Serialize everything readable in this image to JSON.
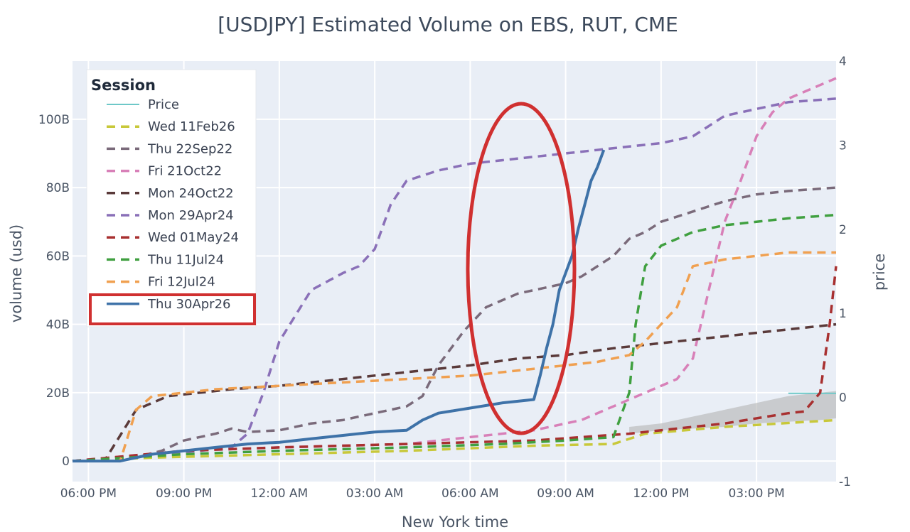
{
  "chart_data": {
    "type": "line",
    "title": "[USDJPY] Estimated Volume on EBS, RUT, CME",
    "xlabel": "New York time",
    "ylabel": "volume (usd)",
    "y2label": "price",
    "x_ticks": [
      "06:00 PM",
      "09:00 PM",
      "12:00 AM",
      "03:00 AM",
      "06:00 AM",
      "09:00 AM",
      "12:00 PM",
      "03:00 PM"
    ],
    "x_range_hours": [
      17.5,
      41.5
    ],
    "y_ticks": [
      "0",
      "20B",
      "40B",
      "60B",
      "80B",
      "100B"
    ],
    "ylim": [
      -6,
      117
    ],
    "y2_ticks": [
      "-1",
      "0",
      "1",
      "2",
      "3",
      "4"
    ],
    "y2lim": [
      -1,
      4
    ],
    "grid": true,
    "legend": {
      "title": "Session",
      "position": "top-left"
    },
    "colors": {
      "plot_bg": "#e9eef6",
      "highlight": "#d03030",
      "price_band": "#b8b8b8"
    },
    "series": [
      {
        "name": "Price",
        "color": "#6ec8c8",
        "dash": "solid",
        "axis": "y2",
        "x": [
          40,
          41.5
        ],
        "y": [
          0.05,
          0.05
        ]
      },
      {
        "name": "Wed 11Feb26",
        "color": "#c8c83a",
        "dash": "dashed",
        "x": [
          17.5,
          20,
          24,
          28,
          32,
          34.5,
          35.5,
          38,
          41.5
        ],
        "y": [
          0,
          1,
          2,
          3,
          4.5,
          5,
          8,
          10,
          12
        ]
      },
      {
        "name": "Thu 22Sep22",
        "color": "#7a6a7a",
        "dash": "dashed",
        "x": [
          17.5,
          19,
          20.3,
          21,
          22,
          22.5,
          23,
          24,
          25,
          26,
          27,
          28,
          28.5,
          29,
          29.8,
          30.5,
          31,
          31.5,
          32,
          32.5,
          33,
          33.5,
          34,
          34.5,
          35,
          35.5,
          36,
          37,
          38,
          39,
          40,
          41.5
        ],
        "y": [
          0,
          0,
          3,
          6,
          8,
          9.5,
          8.5,
          9,
          11,
          12,
          14,
          16,
          19,
          28,
          38,
          45,
          47,
          49,
          50,
          51,
          52,
          54,
          57,
          60,
          65,
          67,
          70,
          73,
          76,
          78,
          79,
          80
        ]
      },
      {
        "name": "Fri 21Oct22",
        "color": "#d880b8",
        "dash": "dashed",
        "x": [
          17.5,
          21,
          24,
          28,
          30,
          32,
          33.5,
          34.5,
          35.5,
          36.5,
          37,
          37.5,
          38,
          38.5,
          39,
          39.5,
          40,
          41,
          41.5
        ],
        "y": [
          0,
          3,
          4,
          5,
          7,
          9,
          12,
          16,
          20,
          24,
          30,
          50,
          70,
          82,
          95,
          102,
          106,
          110,
          112
        ]
      },
      {
        "name": "Mon 24Oct22",
        "color": "#5a3a3a",
        "dash": "dashed",
        "x": [
          17.5,
          18.5,
          19.5,
          20.5,
          21.5,
          22.5,
          24,
          26,
          28,
          30,
          31.5,
          33,
          34.5,
          35.5,
          36.5,
          37.5,
          38.5,
          39.5,
          40.5,
          41.5
        ],
        "y": [
          0,
          0,
          15,
          19,
          20,
          21,
          22,
          24,
          26,
          28,
          30,
          31,
          33,
          34,
          35,
          36,
          37,
          38,
          39,
          40
        ]
      },
      {
        "name": "Mon 29Apr24",
        "color": "#8a70b8",
        "dash": "dashed",
        "x": [
          17.5,
          20,
          21.5,
          22.5,
          23,
          23.5,
          24,
          25,
          26,
          26.5,
          27,
          27.5,
          28,
          29,
          30,
          31,
          32,
          33,
          34,
          35,
          36,
          37,
          38,
          39,
          40,
          41.5
        ],
        "y": [
          0,
          2,
          3,
          4,
          8,
          20,
          35,
          50,
          55,
          57,
          62,
          75,
          82,
          85,
          87,
          88,
          89,
          90,
          91,
          92,
          93,
          95,
          101,
          103,
          105,
          106
        ]
      },
      {
        "name": "Wed 01May24",
        "color": "#a83030",
        "dash": "dashed",
        "x": [
          17.5,
          21,
          24,
          28,
          32,
          35,
          38,
          40,
          40.5,
          41,
          41.3,
          41.5
        ],
        "y": [
          0,
          3,
          4,
          5,
          6,
          8,
          11,
          14,
          14.5,
          20,
          40,
          57
        ]
      },
      {
        "name": "Thu 11Jul24",
        "color": "#40a040",
        "dash": "dashed",
        "x": [
          17.5,
          21,
          24,
          28,
          31,
          33,
          34.5,
          35,
          35.2,
          35.5,
          36,
          36.5,
          37,
          38,
          39,
          40,
          41.5
        ],
        "y": [
          0,
          2,
          3,
          4,
          5,
          6,
          7,
          20,
          40,
          57,
          63,
          65,
          67,
          69,
          70,
          71,
          72
        ]
      },
      {
        "name": "Fri 12Jul24",
        "color": "#f0a050",
        "dash": "dashed",
        "x": [
          17.5,
          19,
          19.5,
          20,
          21,
          22,
          24,
          26,
          28,
          30,
          32,
          34,
          35,
          35.5,
          36,
          36.5,
          37,
          37.5,
          38,
          39,
          40,
          41.5
        ],
        "y": [
          0,
          0,
          15,
          19,
          20,
          21,
          22,
          23,
          24,
          25,
          27,
          29,
          31,
          35,
          40,
          45,
          57,
          58,
          59,
          60,
          61,
          61
        ]
      },
      {
        "name": "Thu 30Apr26",
        "color": "#3e72a8",
        "dash": "solid",
        "x": [
          17.5,
          19,
          20,
          21,
          22,
          23,
          24,
          25,
          26,
          27,
          28,
          28.5,
          29,
          30,
          31,
          31.5,
          32,
          32.2,
          32.4,
          32.6,
          32.8,
          33,
          33.2,
          33.4,
          33.6,
          33.8,
          34,
          34.2
        ],
        "y": [
          0,
          0,
          2,
          3,
          4,
          5,
          5.5,
          6.5,
          7.5,
          8.5,
          9,
          12,
          14,
          15.5,
          17,
          17.5,
          18,
          25,
          33,
          40,
          50,
          55,
          60,
          68,
          75,
          82,
          86,
          91
        ]
      }
    ]
  },
  "highlight_note": ""
}
